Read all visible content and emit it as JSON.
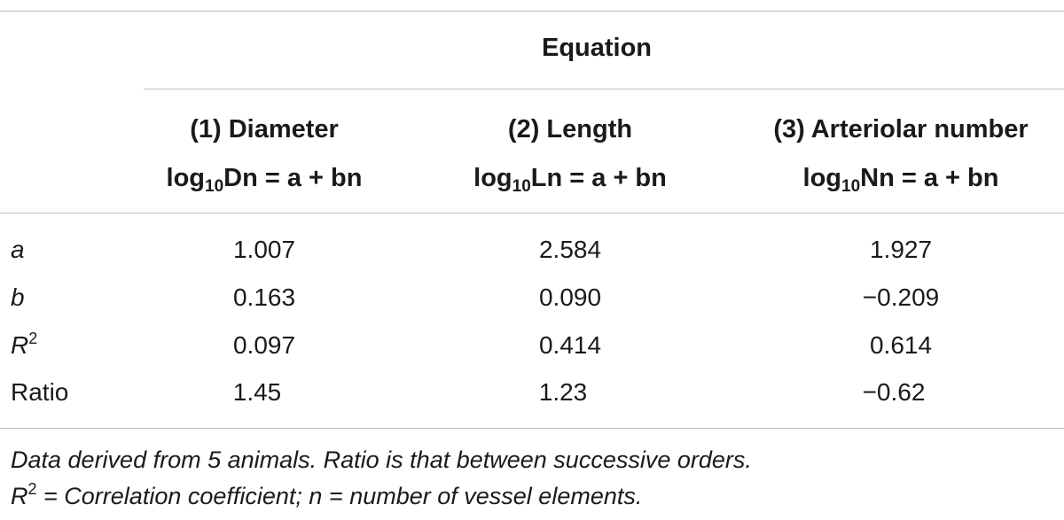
{
  "table": {
    "spanner_header": "Equation",
    "columns": [
      {
        "title": "(1) Diameter",
        "formula_prefix": "log",
        "formula_sub": "10",
        "formula_rest": "Dn = a + bn"
      },
      {
        "title": "(2) Length",
        "formula_prefix": "log",
        "formula_sub": "10",
        "formula_rest": "Ln = a + bn"
      },
      {
        "title": "(3) Arteriolar number",
        "formula_prefix": "log",
        "formula_sub": "10",
        "formula_rest": "Nn = a + bn"
      }
    ],
    "rows": [
      {
        "label": "a",
        "values": [
          "1.007",
          "2.584",
          "1.927"
        ]
      },
      {
        "label": "b",
        "values": [
          "0.163",
          "0.090",
          "−0.209"
        ]
      },
      {
        "label_base": "R",
        "label_sup": "2",
        "values": [
          "0.097",
          "0.414",
          "0.614"
        ]
      },
      {
        "label": "Ratio",
        "values": [
          "1.45",
          "1.23",
          "−0.62"
        ]
      }
    ]
  },
  "footnote": {
    "line1": "Data derived from 5 animals. Ratio is that between successive orders.",
    "line2_base": "R",
    "line2_sup": "2",
    "line2_rest": " = Correlation coefficient; n = number of vessel elements."
  }
}
